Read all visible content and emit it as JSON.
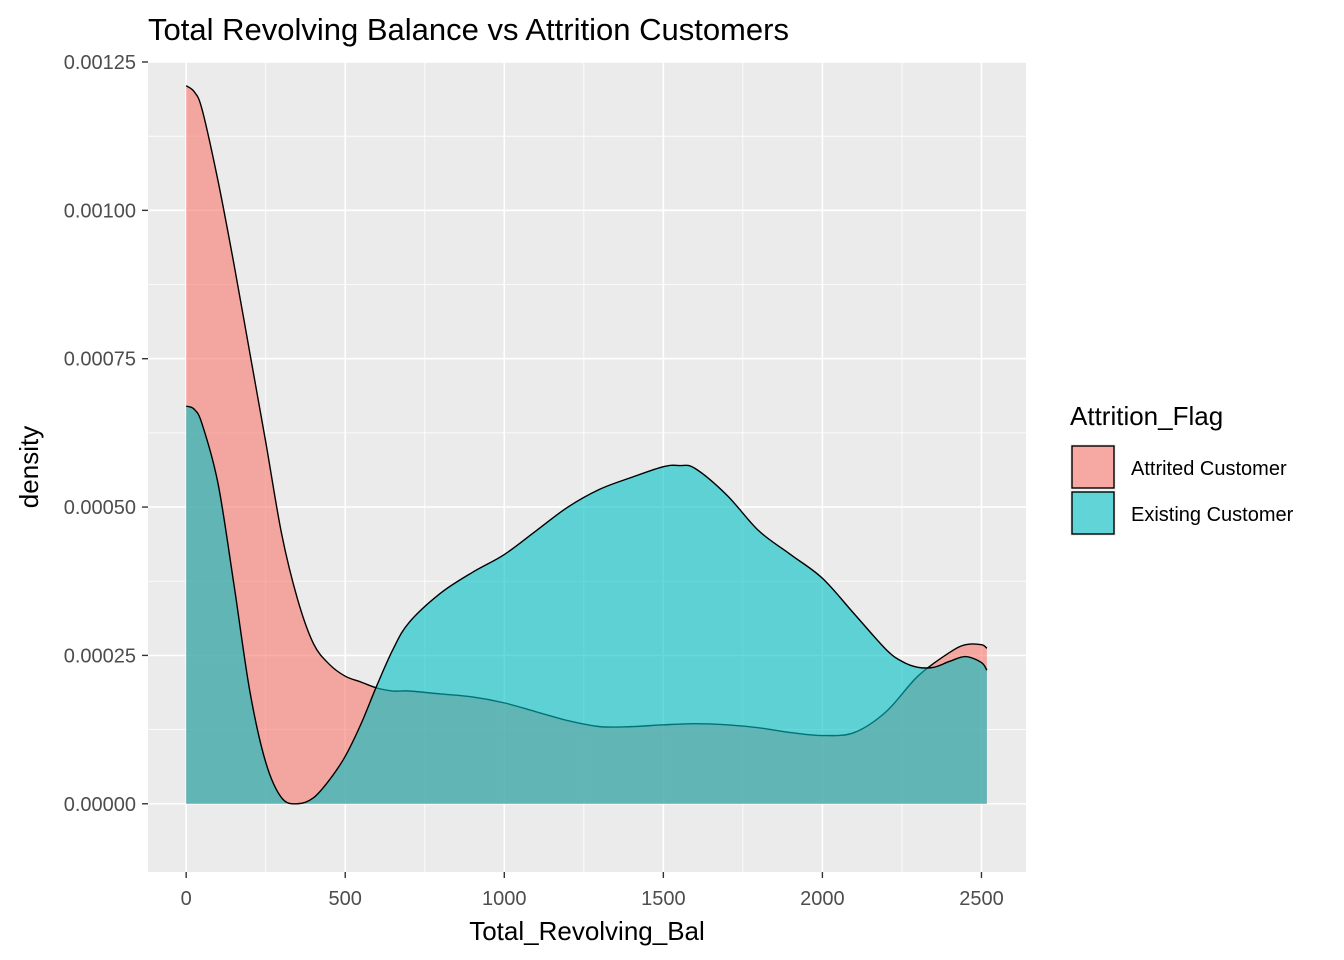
{
  "chart_data": {
    "type": "area",
    "subtype": "density",
    "title": "Total Revolving Balance vs  Attrition Customers",
    "xlabel": "Total_Revolving_Bal",
    "ylabel": "density",
    "xlim": [
      -120,
      2640
    ],
    "ylim": [
      -0.000115,
      0.00125
    ],
    "x_ticks": [
      0,
      500,
      1000,
      1500,
      2000,
      2500
    ],
    "x_tick_labels": [
      "0",
      "500",
      "1000",
      "1500",
      "2000",
      "2500"
    ],
    "y_ticks": [
      0,
      0.00025,
      0.0005,
      0.00075,
      0.001,
      0.00125
    ],
    "y_tick_labels": [
      "0.00000",
      "0.00025",
      "0.00050",
      "0.00075",
      "0.00100",
      "0.00125"
    ],
    "grid": true,
    "legend": {
      "title": "Attrition_Flag",
      "position": "right"
    },
    "series": [
      {
        "name": "Attrited Customer",
        "color": "#F8766D",
        "x": [
          0,
          25,
          50,
          100,
          150,
          200,
          250,
          300,
          350,
          400,
          450,
          500,
          550,
          600,
          650,
          700,
          800,
          900,
          1000,
          1100,
          1200,
          1300,
          1400,
          1500,
          1600,
          1700,
          1800,
          1900,
          2000,
          2100,
          2200,
          2300,
          2400,
          2450,
          2500,
          2517
        ],
        "y": [
          0.00121,
          0.0012,
          0.00117,
          0.00105,
          0.00091,
          0.00076,
          0.00061,
          0.000455,
          0.000345,
          0.00027,
          0.000235,
          0.000215,
          0.000205,
          0.000195,
          0.00019,
          0.00019,
          0.000185,
          0.00018,
          0.00017,
          0.000155,
          0.00014,
          0.00013,
          0.00013,
          0.000133,
          0.000135,
          0.000133,
          0.000128,
          0.00012,
          0.000115,
          0.00012,
          0.000155,
          0.000215,
          0.000255,
          0.000268,
          0.000268,
          0.000262
        ]
      },
      {
        "name": "Existing Customer",
        "color": "#00BFC4",
        "x": [
          0,
          25,
          50,
          100,
          150,
          200,
          250,
          300,
          350,
          400,
          450,
          500,
          550,
          600,
          650,
          700,
          800,
          900,
          1000,
          1100,
          1200,
          1300,
          1400,
          1500,
          1550,
          1600,
          1700,
          1800,
          1900,
          2000,
          2100,
          2200,
          2250,
          2300,
          2350,
          2400,
          2450,
          2500,
          2517
        ],
        "y": [
          0.00067,
          0.000665,
          0.00064,
          0.00054,
          0.00037,
          0.00019,
          7e-05,
          1e-05,
          0.0,
          1e-05,
          4e-05,
          8e-05,
          0.000135,
          0.0002,
          0.00026,
          0.000305,
          0.000355,
          0.00039,
          0.00042,
          0.00046,
          0.0005,
          0.00053,
          0.00055,
          0.000568,
          0.00057,
          0.000565,
          0.00052,
          0.00046,
          0.00042,
          0.00038,
          0.00032,
          0.00026,
          0.00024,
          0.00023,
          0.00023,
          0.00024,
          0.000248,
          0.000238,
          0.000225
        ]
      }
    ]
  }
}
